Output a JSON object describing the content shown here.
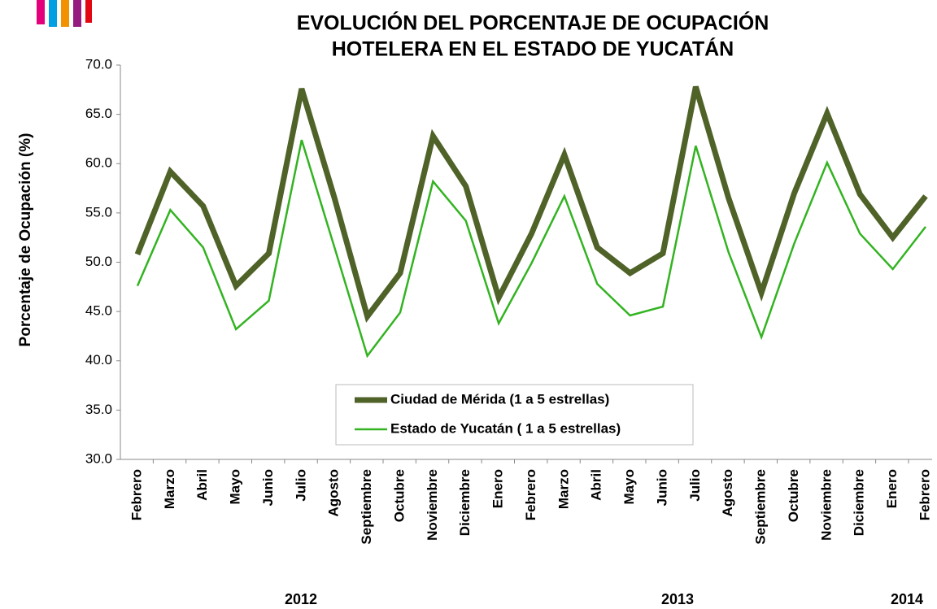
{
  "chart_data": {
    "type": "line",
    "title": [
      "EVOLUCIÓN DEL PORCENTAJE DE OCUPACIÓN",
      "HOTELERA EN EL ESTADO DE YUCATÁN"
    ],
    "y_label": "Porcentaje de Ocupación (%)",
    "categories": [
      "Febrero",
      "Marzo",
      "Abril",
      "Mayo",
      "Junio",
      "Julio",
      "Agosto",
      "Septiembre",
      "Octubre",
      "Noviembre",
      "Diciembre",
      "Enero",
      "Febrero",
      "Marzo",
      "Abril",
      "Mayo",
      "Junio",
      "Julio",
      "Agosto",
      "Septiembre",
      "Octubre",
      "Noviembre",
      "Diciembre",
      "Enero",
      "Febrero"
    ],
    "years": [
      "2012",
      "2013",
      "2014"
    ],
    "series": [
      {
        "name": "Ciudad de Mérida (1 a 5 estrellas)",
        "color": "#4f6228",
        "values": [
          50.8,
          59.2,
          55.7,
          47.6,
          50.9,
          67.6,
          56.5,
          44.5,
          48.9,
          62.8,
          57.7,
          46.4,
          52.9,
          60.9,
          51.5,
          48.9,
          50.9,
          67.8,
          56.5,
          46.9,
          57.0,
          65.1,
          56.9,
          52.5,
          56.7
        ]
      },
      {
        "name": "Estado de Yucatán ( 1 a 5 estrellas)",
        "color": "#33b321",
        "values": [
          47.6,
          55.3,
          51.5,
          43.2,
          46.1,
          62.4,
          51.5,
          40.5,
          44.9,
          58.2,
          54.2,
          43.8,
          49.9,
          56.7,
          47.8,
          44.6,
          45.5,
          61.8,
          51.0,
          42.4,
          51.9,
          60.1,
          52.9,
          49.3,
          53.6
        ]
      }
    ],
    "ylim": [
      30,
      70
    ],
    "yticks": [
      {
        "value": 30,
        "label": "30.0"
      },
      {
        "value": 35,
        "label": "35.0"
      },
      {
        "value": 40,
        "label": "40.0"
      },
      {
        "value": 45,
        "label": "45.0"
      },
      {
        "value": 50,
        "label": "50.0"
      },
      {
        "value": 55,
        "label": "55.0"
      },
      {
        "value": 60,
        "label": "60.0"
      },
      {
        "value": 65,
        "label": "65.0"
      },
      {
        "value": 70,
        "label": "70.0"
      }
    ],
    "legend": "bottom-center"
  }
}
